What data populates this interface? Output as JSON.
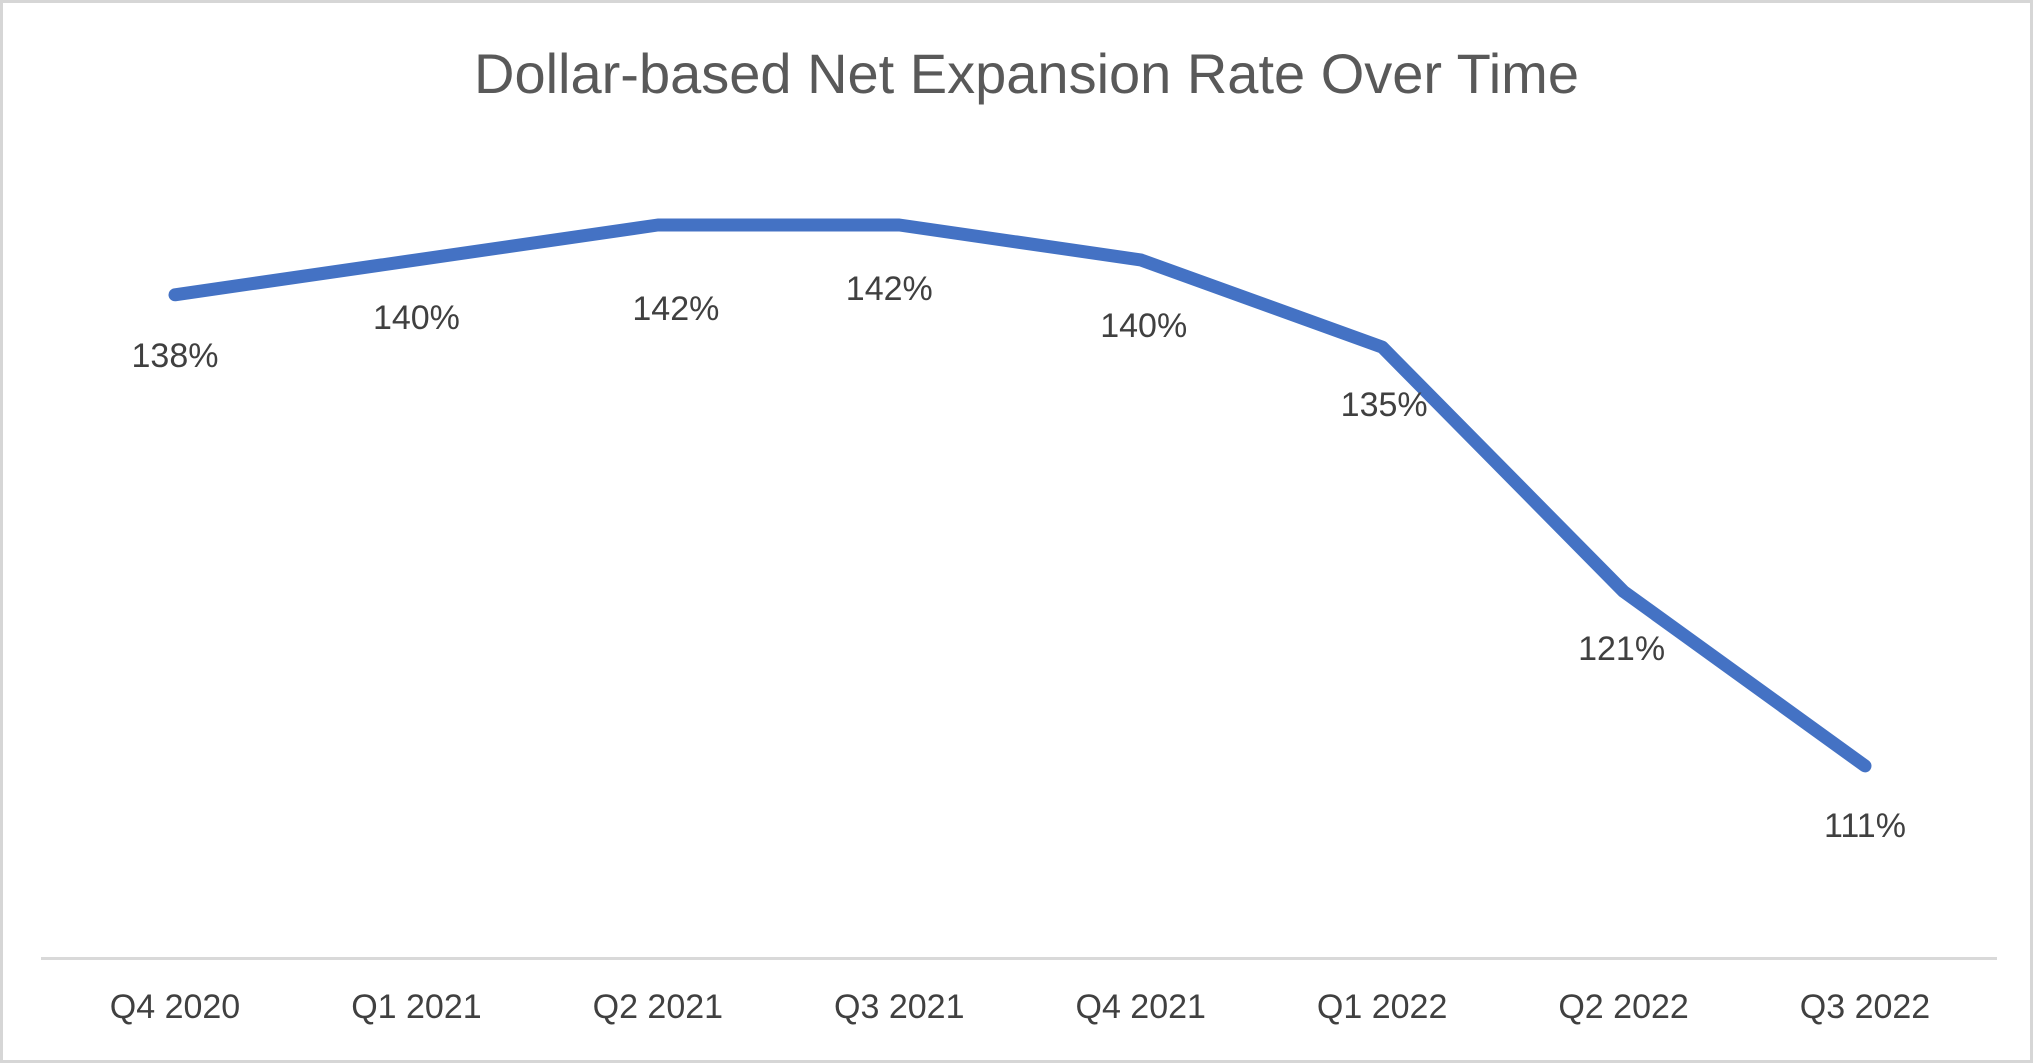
{
  "chart_data": {
    "type": "line",
    "title": "Dollar-based Net Expansion Rate Over Time",
    "categories": [
      "Q4 2020",
      "Q1 2021",
      "Q2 2021",
      "Q3 2021",
      "Q4 2021",
      "Q1 2022",
      "Q2 2022",
      "Q3 2022"
    ],
    "values": [
      138,
      140,
      142,
      142,
      140,
      135,
      121,
      111
    ],
    "data_labels": [
      "138%",
      "140%",
      "142%",
      "142%",
      "140%",
      "135%",
      "121%",
      "111%"
    ],
    "xlabel": "",
    "ylabel": "",
    "ylim": [
      105,
      145
    ],
    "gridlines": false,
    "legend_position": "none",
    "markers": false,
    "line_color": "#4472C4",
    "label_color": "#404040",
    "title_color": "#595959",
    "axis_line_color": "#D9D9D9"
  }
}
